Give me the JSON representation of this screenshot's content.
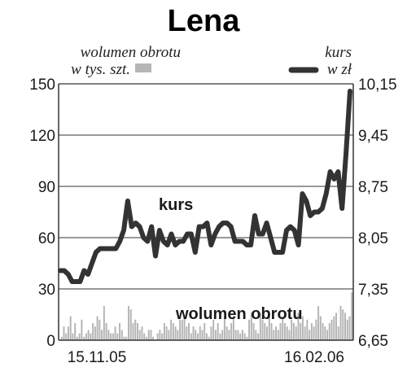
{
  "chart_data": {
    "type": "line",
    "title": "Lena",
    "legend": {
      "volume_line1": "wolumen obrotu",
      "volume_line2": "w tys. szt.",
      "price_line1": "kurs",
      "price_line2": "w zł"
    },
    "annotations": {
      "price": "kurs",
      "volume": "wolumen obrotu"
    },
    "x_tick_labels": [
      "15.11.05",
      "16.02.06"
    ],
    "y_left": {
      "ticks": [
        "150",
        "120",
        "90",
        "60",
        "30",
        "0"
      ],
      "range": [
        0,
        150
      ]
    },
    "y_right": {
      "ticks": [
        "10,15",
        "9,45",
        "8,75",
        "8,05",
        "7,35",
        "6,65"
      ],
      "range": [
        6.65,
        10.15
      ]
    },
    "colors": {
      "price": "#333333",
      "volume": "#b5b5b5",
      "grid": "#333333"
    },
    "series": [
      {
        "name": "kurs",
        "axis": "right",
        "values": [
          7.6,
          7.6,
          7.55,
          7.45,
          7.45,
          7.45,
          7.6,
          7.55,
          7.7,
          7.85,
          7.9,
          7.9,
          7.9,
          7.9,
          7.9,
          8.0,
          8.15,
          8.55,
          8.2,
          8.25,
          8.2,
          8.05,
          8.0,
          8.2,
          7.8,
          8.15,
          8.0,
          7.95,
          8.1,
          7.95,
          8.0,
          8.0,
          8.1,
          8.1,
          7.85,
          8.2,
          8.2,
          8.25,
          7.95,
          8.1,
          8.2,
          8.25,
          8.25,
          8.2,
          8.0,
          8.0,
          8.0,
          7.95,
          7.95,
          8.35,
          8.1,
          8.1,
          8.25,
          8.05,
          7.85,
          7.85,
          7.85,
          8.15,
          8.2,
          8.15,
          7.95,
          8.65,
          8.55,
          8.35,
          8.4,
          8.4,
          8.45,
          8.65,
          8.95,
          8.85,
          8.95,
          8.45,
          9.2,
          10.05
        ]
      },
      {
        "name": "wolumen obrotu",
        "axis": "left",
        "values": [
          0,
          2,
          8,
          4,
          8,
          14,
          4,
          10,
          2,
          4,
          12,
          2,
          4,
          6,
          4,
          10,
          8,
          14,
          12,
          6,
          20,
          10,
          6,
          4,
          4,
          8,
          4,
          10,
          6,
          2,
          2,
          20,
          18,
          10,
          12,
          10,
          6,
          8,
          4,
          2,
          6,
          6,
          2,
          0,
          4,
          6,
          4,
          10,
          8,
          6,
          12,
          10,
          8,
          6,
          12,
          12,
          14,
          8,
          10,
          4,
          8,
          6,
          4,
          8,
          6,
          10,
          4,
          2,
          8,
          12,
          6,
          10,
          4,
          6,
          14,
          8,
          6,
          10,
          14,
          6,
          6,
          4,
          6,
          4,
          2,
          12,
          16,
          10,
          6,
          4,
          16,
          12,
          10,
          8,
          14,
          10,
          6,
          8,
          6,
          10,
          14,
          10,
          8,
          6,
          12,
          10,
          8,
          16,
          10,
          14,
          8,
          12,
          6,
          10,
          8,
          12,
          20,
          14,
          10,
          8,
          6,
          10,
          12,
          14,
          16,
          8,
          20,
          18,
          16,
          12,
          14,
          28
        ]
      }
    ]
  }
}
